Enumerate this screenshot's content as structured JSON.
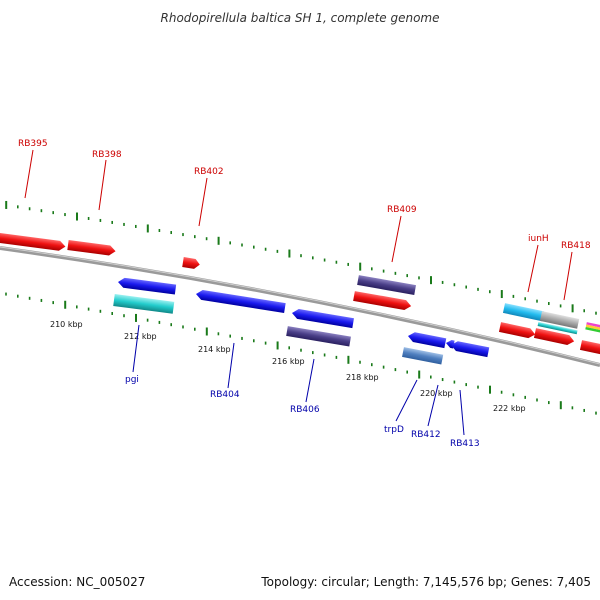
{
  "title": "Rhodopirellula baltica SH 1, complete genome",
  "footer": {
    "accession": "Accession: NC_005027",
    "summary": "Topology: circular; Length: 7,145,576 bp; Genes: 7,405"
  },
  "ruler_labels": [
    "210 kbp",
    "212 kbp",
    "214 kbp",
    "216 kbp",
    "218 kbp",
    "220 kbp",
    "222 kbp"
  ],
  "top_labels": [
    "RB395",
    "RB398",
    "RB402",
    "RB409",
    "iunH",
    "RB418"
  ],
  "bottom_labels": [
    "pgi",
    "RB404",
    "RB406",
    "trpD",
    "RB412",
    "RB413"
  ],
  "colors": {
    "forward_gene": "#ee1111",
    "reverse_gene": "#1a1aee",
    "dark_gene": "#4a3f88",
    "cyan_gene": "#22cccc",
    "steel_gene": "#4f7fbf",
    "sky_gene": "#22bbee",
    "backbone": "#888888",
    "tick": "#1a7a1a",
    "top_label": "#cc0000",
    "bottom_label": "#0000aa"
  }
}
